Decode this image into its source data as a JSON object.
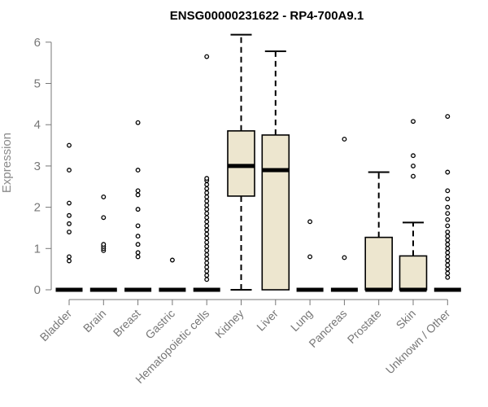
{
  "chart_data": {
    "type": "boxplot",
    "title": "ENSG00000231622 - RP4-700A9.1",
    "ylabel": "Expression",
    "xlabel": "",
    "ylim": [
      0,
      6
    ],
    "yticks": [
      0,
      1,
      2,
      3,
      4,
      5,
      6
    ],
    "box_fill": "#ede6cf",
    "axis_color": "#777777",
    "categories": [
      "Bladder",
      "Brain",
      "Breast",
      "Gastric",
      "Hematopoietic cells",
      "Kidney",
      "Liver",
      "Lung",
      "Pancreas",
      "Prostate",
      "Skin",
      "Unknown / Other"
    ],
    "boxes": [
      {
        "q1": 0,
        "median": 0,
        "q3": 0,
        "whisker_low": 0,
        "whisker_high": 0,
        "outliers": [
          0.7,
          0.8,
          1.4,
          1.6,
          1.8,
          2.1,
          2.9,
          3.5
        ]
      },
      {
        "q1": 0,
        "median": 0,
        "q3": 0,
        "whisker_low": 0,
        "whisker_high": 0,
        "outliers": [
          0.95,
          1.0,
          1.05,
          1.1,
          1.75,
          2.25
        ]
      },
      {
        "q1": 0,
        "median": 0,
        "q3": 0,
        "whisker_low": 0,
        "whisker_high": 0,
        "outliers": [
          0.8,
          0.9,
          1.1,
          1.3,
          1.55,
          1.95,
          2.3,
          2.4,
          2.9,
          4.05
        ]
      },
      {
        "q1": 0,
        "median": 0,
        "q3": 0,
        "whisker_low": 0,
        "whisker_high": 0,
        "outliers": [
          0.72
        ]
      },
      {
        "q1": 0,
        "median": 0,
        "q3": 0,
        "whisker_low": 0,
        "whisker_high": 0,
        "outliers": [
          0.25,
          0.35,
          0.45,
          0.55,
          0.65,
          0.75,
          0.85,
          0.95,
          1.05,
          1.15,
          1.25,
          1.35,
          1.45,
          1.55,
          1.65,
          1.75,
          1.85,
          1.95,
          2.05,
          2.15,
          2.25,
          2.35,
          2.45,
          2.55,
          2.65,
          2.7,
          5.65
        ]
      },
      {
        "q1": 2.27,
        "median": 3.0,
        "q3": 3.85,
        "whisker_low": 0,
        "whisker_high": 6.18,
        "outliers": []
      },
      {
        "q1": 0,
        "median": 2.9,
        "q3": 3.75,
        "whisker_low": 0,
        "whisker_high": 5.78,
        "outliers": []
      },
      {
        "q1": 0,
        "median": 0,
        "q3": 0,
        "whisker_low": 0,
        "whisker_high": 0,
        "outliers": [
          0.8,
          1.65
        ]
      },
      {
        "q1": 0,
        "median": 0,
        "q3": 0,
        "whisker_low": 0,
        "whisker_high": 0,
        "outliers": [
          0.78,
          3.65
        ]
      },
      {
        "q1": 0,
        "median": 0,
        "q3": 1.27,
        "whisker_low": 0,
        "whisker_high": 2.85,
        "outliers": []
      },
      {
        "q1": 0,
        "median": 0,
        "q3": 0.82,
        "whisker_low": 0,
        "whisker_high": 1.63,
        "outliers": [
          2.75,
          3.0,
          3.25,
          4.08
        ]
      },
      {
        "q1": 0,
        "median": 0,
        "q3": 0,
        "whisker_low": 0,
        "whisker_high": 0,
        "outliers": [
          0.3,
          0.4,
          0.5,
          0.6,
          0.7,
          0.8,
          0.9,
          1.0,
          1.1,
          1.2,
          1.3,
          1.4,
          1.55,
          1.7,
          1.85,
          2.0,
          2.2,
          2.4,
          2.85,
          4.2
        ]
      }
    ]
  }
}
